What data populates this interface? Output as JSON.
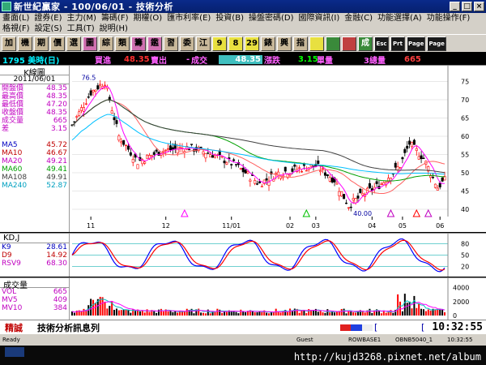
{
  "window": {
    "title": "新世紀贏家 - 100/06/01 - 技術分析",
    "min": "_",
    "max": "□",
    "close": "×"
  },
  "menu1": [
    "畫面(L)",
    "證券(E)",
    "主力(M)",
    "籌碼(F)",
    "期權(O)",
    "匯市利率(E)",
    "投資(B)",
    "操盤密碼(D)",
    "國際資訊(I)",
    "金融(C)",
    "功能選擇(A)",
    "功能操作(F)"
  ],
  "menu2": [
    "格視(F)",
    "設定(S)",
    "工具(T)",
    "說明(H)"
  ],
  "toolbar": [
    "加",
    "機",
    "期",
    "價",
    "選",
    "圖",
    "綜",
    "類",
    "籌",
    "鑑",
    "習",
    "委",
    "江",
    "9",
    "8",
    "29",
    "錶",
    "興",
    "指",
    "",
    "",
    "",
    "成",
    "Esc",
    "Prt",
    "Page",
    "Page"
  ],
  "quote": {
    "code": "1795 美時(日)",
    "bid_label": "買進",
    "bid": "48.35",
    "ask_label": "賣出",
    "chg_sign": "-",
    "chg_label": "成交",
    "last": "48.35",
    "pct_label": "漲跌",
    "vol": "3.15",
    "vol_label": "單量",
    "tot_label": "3總量",
    "tot": "665"
  },
  "kpanel": {
    "title": "K線圖",
    "date": "2011/06/01",
    "rows": [
      {
        "k": "開盤價",
        "v": "48.35"
      },
      {
        "k": "最高價",
        "v": "48.35"
      },
      {
        "k": "最低價",
        "v": "47.20"
      },
      {
        "k": "收盤價",
        "v": "48.35"
      },
      {
        "k": "成交量",
        "v": "665"
      },
      {
        "k": "差",
        "v": "3.15"
      }
    ],
    "ma": [
      {
        "k": "MA5",
        "v": "45.72"
      },
      {
        "k": "MA10",
        "v": "46.67"
      },
      {
        "k": "MA20",
        "v": "49.21"
      },
      {
        "k": "MA60",
        "v": "49.41"
      },
      {
        "k": "MA108",
        "v": "49.91"
      },
      {
        "k": "MA240",
        "v": "52.87"
      }
    ],
    "high_label": "76.5",
    "low_label": "40.00",
    "yticks": [
      "75",
      "70",
      "65",
      "60",
      "55",
      "50",
      "45",
      "40"
    ],
    "xticks": [
      "11",
      "12",
      "11/01",
      "02",
      "03",
      "04",
      "05",
      "06"
    ]
  },
  "kd": {
    "title": "KD,J",
    "rows": [
      {
        "k": "K9",
        "v": "28.61"
      },
      {
        "k": "D9",
        "v": "14.92"
      },
      {
        "k": "RSV9",
        "v": "68.30"
      }
    ],
    "yticks": [
      "80",
      "50",
      "20"
    ]
  },
  "vol": {
    "title": "成交量",
    "rows": [
      {
        "k": "VOL",
        "v": "665"
      },
      {
        "k": "MV5",
        "v": "409"
      },
      {
        "k": "MV10",
        "v": "384"
      }
    ],
    "yticks": [
      "4000",
      "2000",
      "0"
    ]
  },
  "statusline": {
    "label1": "精誠",
    "label2": "技術分析訊息列",
    "clock": "10:32:55"
  },
  "statusbar": [
    "Ready",
    "Guest",
    "ROWBASE1",
    "OBNB5040_1",
    "10:32:55"
  ],
  "watermark": "http://kujd3268.pixnet.net/album",
  "colors": {
    "up": "#ff0000",
    "down": "#000000",
    "ma5": "#ff00ff",
    "ma20": "#00a000",
    "ma60": "#404040",
    "ma240": "#00c0ff"
  }
}
